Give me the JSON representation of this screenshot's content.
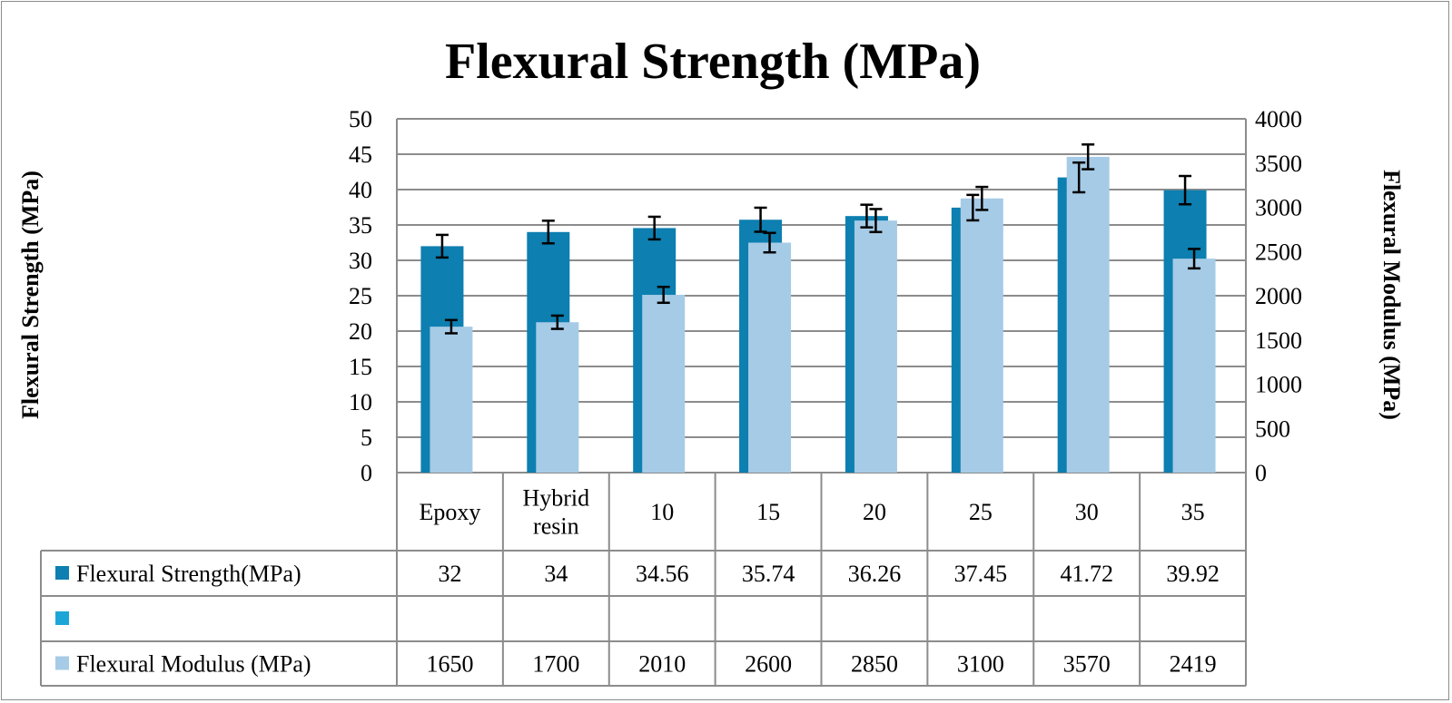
{
  "chart_data": {
    "type": "bar",
    "title": "Flexural Strength (MPa)",
    "ylabel": "Flexural Strength (MPa)",
    "y2label": "Flexural Modulus (MPa)",
    "ylim": [
      0,
      50
    ],
    "y2lim": [
      0,
      4000
    ],
    "yticks": [
      "0",
      "5",
      "10",
      "15",
      "20",
      "25",
      "30",
      "35",
      "40",
      "45",
      "50"
    ],
    "y2ticks": [
      "0",
      "500",
      "1000",
      "1500",
      "2000",
      "2500",
      "3000",
      "3500",
      "4000"
    ],
    "categories": [
      [
        "Epoxy"
      ],
      [
        "Hybrid",
        "resin"
      ],
      [
        "10"
      ],
      [
        "15"
      ],
      [
        "20"
      ],
      [
        "25"
      ],
      [
        "30"
      ],
      [
        "35"
      ]
    ],
    "grid": true,
    "legend": "data-table",
    "series": [
      {
        "name": "Flexural Strength(MPa)",
        "axis": "left",
        "color": "#0d7fb0",
        "values": [
          32,
          34,
          34.56,
          35.74,
          36.26,
          37.45,
          41.72,
          39.92
        ],
        "labels": [
          "32",
          "34",
          "34.56",
          "35.74",
          "36.26",
          "37.45",
          "41.72",
          "39.92"
        ],
        "error": [
          1.6,
          1.6,
          1.6,
          1.7,
          1.6,
          1.8,
          2.1,
          2.0
        ]
      },
      {
        "name": "",
        "axis": "left",
        "color": "#1ca6d8",
        "values": [
          null,
          null,
          null,
          null,
          null,
          null,
          null,
          null
        ],
        "labels": [
          "",
          "",
          "",
          "",
          "",
          "",
          "",
          ""
        ],
        "error": []
      },
      {
        "name": "Flexural  Modulus (MPa)",
        "axis": "right",
        "color": "#a6cbe6",
        "values": [
          1650,
          1700,
          2010,
          2600,
          2850,
          3100,
          3570,
          2419
        ],
        "labels": [
          "1650",
          "1700",
          "2010",
          "2600",
          "2850",
          "3100",
          "3570",
          "2419"
        ],
        "error": [
          75,
          75,
          90,
          110,
          130,
          130,
          140,
          110
        ]
      }
    ]
  }
}
